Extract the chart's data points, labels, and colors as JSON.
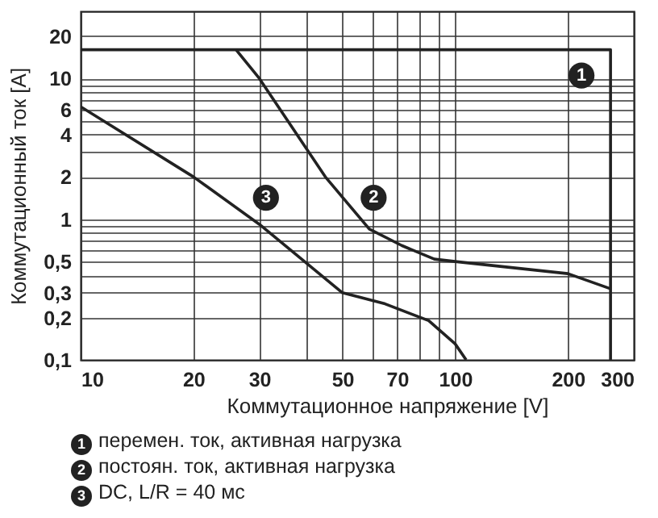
{
  "chart_data": {
    "type": "line",
    "xlabel": "Коммутационное напряжение [V]",
    "ylabel": "Коммутационный ток [A]",
    "log": "xy",
    "legend": "bottom",
    "grid": true,
    "xlim": [
      10,
      300
    ],
    "ylim": [
      0.1,
      30
    ],
    "xticks": [
      10,
      20,
      30,
      {
        "value": 40,
        "label": null
      },
      50,
      {
        "value": 60,
        "label": null
      },
      70,
      {
        "value": 80,
        "label": null
      },
      {
        "value": 90,
        "label": null
      },
      100,
      200,
      300
    ],
    "yticks": [
      {
        "value": 0.1,
        "label": "0,1"
      },
      {
        "value": 0.2,
        "label": "0,2"
      },
      {
        "value": 0.3,
        "label": "0,3"
      },
      {
        "value": 0.4,
        "label": null
      },
      {
        "value": 0.5,
        "label": "0,5"
      },
      {
        "value": 0.6,
        "label": null
      },
      {
        "value": 0.7,
        "label": null
      },
      {
        "value": 0.8,
        "label": null
      },
      {
        "value": 0.9,
        "label": null
      },
      1,
      2,
      {
        "value": 3,
        "label": null
      },
      4,
      {
        "value": 5,
        "label": null
      },
      6,
      {
        "value": 7,
        "label": null
      },
      {
        "value": 8,
        "label": null
      },
      {
        "value": 9,
        "label": null
      },
      10,
      20
    ],
    "series": [
      {
        "name": "1",
        "color": "#222222",
        "x": [
          10,
          260,
          260
        ],
        "values": [
          16,
          16,
          0.1
        ]
      },
      {
        "name": "2",
        "color": "#222222",
        "x": [
          26,
          30,
          45,
          59,
          72,
          88,
          100,
          200,
          260
        ],
        "values": [
          16,
          10,
          2.0,
          0.85,
          0.65,
          0.52,
          0.5,
          0.41,
          0.32
        ]
      },
      {
        "name": "3",
        "color": "#222222",
        "x": [
          10,
          20,
          30,
          50,
          65,
          85,
          100,
          107
        ],
        "values": [
          6.3,
          2.0,
          0.92,
          0.3,
          0.25,
          0.19,
          0.13,
          0.1
        ]
      }
    ],
    "annotations": [
      "перемен. ток, активная нагрузка",
      "постоян. ток, активная нагрузка",
      "DC, L/R = 40 мс"
    ]
  }
}
